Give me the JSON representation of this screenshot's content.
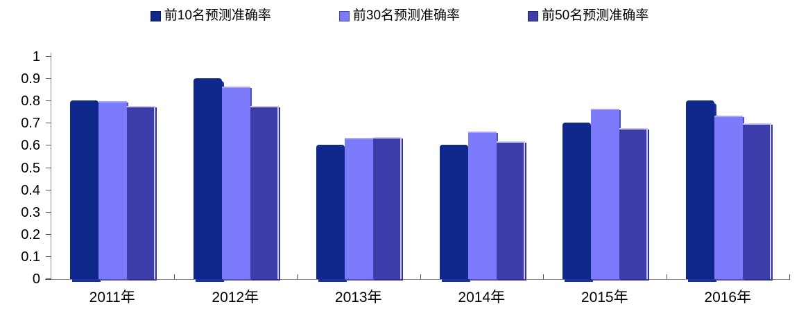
{
  "chart_data": {
    "type": "bar",
    "title": "",
    "xlabel": "",
    "ylabel": "",
    "categories": [
      "2011年",
      "2012年",
      "2013年",
      "2014年",
      "2015年",
      "2016年"
    ],
    "series": [
      {
        "name": "前10名预测准确率",
        "color": "#0e288c",
        "values": [
          0.805,
          0.905,
          0.605,
          0.605,
          0.705,
          0.805
        ]
      },
      {
        "name": "前30名预测准确率",
        "color": "#7a7afb",
        "values": [
          0.8,
          0.865,
          0.635,
          0.665,
          0.765,
          0.735
        ]
      },
      {
        "name": "前50名预测准确率",
        "color": "#3c3caa",
        "values": [
          0.78,
          0.78,
          0.64,
          0.62,
          0.68,
          0.7
        ]
      }
    ],
    "ylim": [
      0,
      1
    ],
    "ytick_labels": [
      "0",
      "0.1",
      "0.2",
      "0.3",
      "0.4",
      "0.5",
      "0.6",
      "0.7",
      "0.8",
      "0.9",
      "1"
    ],
    "grid": false,
    "legend_position": "top-center",
    "axis_color": "#8a8a8a",
    "tick_color": "#555555"
  }
}
